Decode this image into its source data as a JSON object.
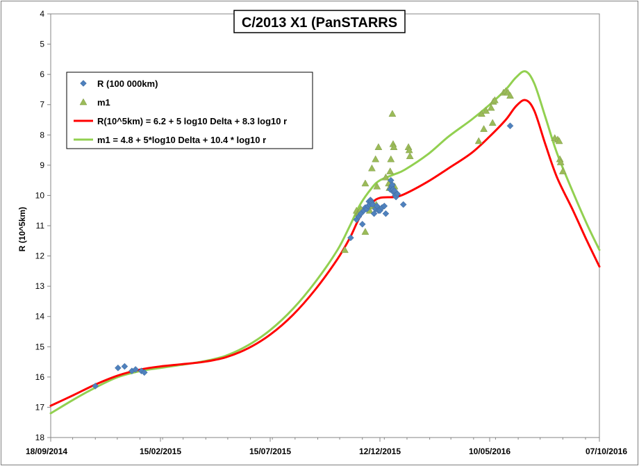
{
  "chart_data": {
    "type": "scatter",
    "title": "C/2013 X1 (PanSTARRS",
    "ylabel": "R (10^5km)",
    "xlabel": "",
    "ylim": [
      4,
      18
    ],
    "y_inverted": true,
    "y_ticks": [
      4,
      5,
      6,
      7,
      8,
      9,
      10,
      11,
      12,
      13,
      14,
      15,
      16,
      17,
      18
    ],
    "xlim": [
      "18/09/2014",
      "07/10/2016"
    ],
    "x_ticks": [
      "18/09/2014",
      "15/02/2015",
      "15/07/2015",
      "12/12/2015",
      "10/05/2016",
      "07/10/2016"
    ],
    "grid": false,
    "legend_position": "top-left",
    "series": [
      {
        "name": "R (100 000km)",
        "kind": "points",
        "marker": "diamond",
        "color": "#4f81bd",
        "points": [
          [
            "18/11/2014",
            16.3
          ],
          [
            "19/12/2014",
            15.7
          ],
          [
            "28/12/2014",
            15.65
          ],
          [
            "07/01/2015",
            15.8
          ],
          [
            "12/01/2015",
            15.75
          ],
          [
            "20/01/2015",
            15.8
          ],
          [
            "24/01/2015",
            15.85
          ],
          [
            "02/11/2015",
            11.4
          ],
          [
            "10/11/2015",
            10.8
          ],
          [
            "13/11/2015",
            10.7
          ],
          [
            "16/11/2015",
            10.6
          ],
          [
            "18/11/2015",
            10.95
          ],
          [
            "20/11/2015",
            10.5
          ],
          [
            "22/11/2015",
            10.4
          ],
          [
            "24/11/2015",
            10.45
          ],
          [
            "26/11/2015",
            10.35
          ],
          [
            "27/11/2015",
            10.2
          ],
          [
            "28/11/2015",
            10.3
          ],
          [
            "29/11/2015",
            10.15
          ],
          [
            "30/11/2015",
            10.2
          ],
          [
            "01/12/2015",
            10.25
          ],
          [
            "02/12/2015",
            10.3
          ],
          [
            "04/12/2015",
            10.6
          ],
          [
            "06/12/2015",
            10.45
          ],
          [
            "08/12/2015",
            10.35
          ],
          [
            "10/12/2015",
            10.5
          ],
          [
            "12/12/2015",
            10.5
          ],
          [
            "15/12/2015",
            10.4
          ],
          [
            "18/12/2015",
            10.35
          ],
          [
            "20/12/2015",
            10.6
          ],
          [
            "26/12/2015",
            9.8
          ],
          [
            "27/12/2015",
            9.5
          ],
          [
            "28/12/2015",
            9.7
          ],
          [
            "29/12/2015",
            9.65
          ],
          [
            "30/12/2015",
            9.8
          ],
          [
            "31/12/2015",
            9.9
          ],
          [
            "01/01/2016",
            9.85
          ],
          [
            "02/01/2016",
            10.0
          ],
          [
            "03/01/2016",
            10.05
          ],
          [
            "05/01/2016",
            9.95
          ],
          [
            "13/01/2016",
            10.3
          ],
          [
            "07/06/2016",
            7.7
          ]
        ]
      },
      {
        "name": "m1",
        "kind": "points",
        "marker": "triangle",
        "color": "#9bbb59",
        "points": [
          [
            "25/10/2015",
            11.8
          ],
          [
            "10/11/2015",
            10.5
          ],
          [
            "12/11/2015",
            10.6
          ],
          [
            "14/11/2015",
            10.55
          ],
          [
            "16/11/2015",
            10.45
          ],
          [
            "22/11/2015",
            11.2
          ],
          [
            "22/11/2015",
            9.6
          ],
          [
            "26/11/2015",
            10.4
          ],
          [
            "28/11/2015",
            10.5
          ],
          [
            "01/12/2015",
            9.1
          ],
          [
            "03/12/2015",
            10.35
          ],
          [
            "06/12/2015",
            8.8
          ],
          [
            "07/12/2015",
            10.3
          ],
          [
            "08/12/2015",
            9.7
          ],
          [
            "10/12/2015",
            8.4
          ],
          [
            "20/12/2015",
            9.4
          ],
          [
            "24/12/2015",
            9.6
          ],
          [
            "25/12/2015",
            9.75
          ],
          [
            "26/12/2015",
            9.2
          ],
          [
            "27/12/2015",
            8.8
          ],
          [
            "29/12/2015",
            7.3
          ],
          [
            "30/12/2015",
            8.3
          ],
          [
            "31/12/2015",
            8.4
          ],
          [
            "01/01/2016",
            9.7
          ],
          [
            "02/01/2016",
            9.85
          ],
          [
            "20/01/2016",
            8.4
          ],
          [
            "21/01/2016",
            8.5
          ],
          [
            "22/01/2016",
            8.7
          ],
          [
            "25/04/2016",
            8.2
          ],
          [
            "29/04/2016",
            7.3
          ],
          [
            "02/05/2016",
            7.8
          ],
          [
            "05/05/2016",
            7.2
          ],
          [
            "12/05/2016",
            7.1
          ],
          [
            "14/05/2016",
            7.6
          ],
          [
            "15/05/2016",
            6.9
          ],
          [
            "17/05/2016",
            6.85
          ],
          [
            "29/05/2016",
            6.6
          ],
          [
            "01/06/2016",
            6.55
          ],
          [
            "04/06/2016",
            6.6
          ],
          [
            "07/06/2016",
            6.7
          ],
          [
            "07/08/2016",
            8.1
          ],
          [
            "11/08/2016",
            8.15
          ],
          [
            "13/08/2016",
            8.2
          ],
          [
            "14/08/2016",
            8.8
          ],
          [
            "15/08/2016",
            8.9
          ],
          [
            "18/08/2016",
            9.2
          ]
        ]
      },
      {
        "name": "R(10^5km) = 6.2 + 5 log10 Delta + 8.3  log10 r",
        "kind": "line",
        "color": "#ff0000",
        "points": [
          [
            "18/09/2014",
            16.95
          ],
          [
            "19/10/2014",
            16.6
          ],
          [
            "18/11/2014",
            16.25
          ],
          [
            "19/12/2014",
            15.95
          ],
          [
            "19/01/2015",
            15.75
          ],
          [
            "15/02/2015",
            15.65
          ],
          [
            "15/03/2015",
            15.58
          ],
          [
            "15/04/2015",
            15.5
          ],
          [
            "15/05/2015",
            15.35
          ],
          [
            "15/06/2015",
            15.05
          ],
          [
            "15/07/2015",
            14.6
          ],
          [
            "15/08/2015",
            13.95
          ],
          [
            "15/09/2015",
            13.1
          ],
          [
            "15/10/2015",
            12.1
          ],
          [
            "01/11/2015",
            11.4
          ],
          [
            "15/11/2015",
            10.7
          ],
          [
            "01/12/2015",
            10.25
          ],
          [
            "12/12/2015",
            10.08
          ],
          [
            "01/01/2016",
            10.05
          ],
          [
            "15/01/2016",
            9.95
          ],
          [
            "15/02/2016",
            9.55
          ],
          [
            "15/03/2016",
            9.1
          ],
          [
            "15/04/2016",
            8.6
          ],
          [
            "10/05/2016",
            8.05
          ],
          [
            "01/06/2016",
            7.5
          ],
          [
            "15/06/2016",
            7.05
          ],
          [
            "28/06/2016",
            6.85
          ],
          [
            "10/07/2016",
            7.2
          ],
          [
            "25/07/2016",
            8.3
          ],
          [
            "10/08/2016",
            9.4
          ],
          [
            "01/09/2016",
            10.5
          ],
          [
            "20/09/2016",
            11.5
          ],
          [
            "07/10/2016",
            12.35
          ]
        ]
      },
      {
        "name": "m1 = 4.8 + 5*log10 Delta + 10.4 * log10 r",
        "kind": "line",
        "color": "#92d050",
        "points": [
          [
            "18/09/2014",
            17.2
          ],
          [
            "19/10/2014",
            16.75
          ],
          [
            "18/11/2014",
            16.35
          ],
          [
            "19/12/2014",
            16.0
          ],
          [
            "19/01/2015",
            15.8
          ],
          [
            "15/02/2015",
            15.7
          ],
          [
            "15/03/2015",
            15.6
          ],
          [
            "15/04/2015",
            15.48
          ],
          [
            "15/05/2015",
            15.3
          ],
          [
            "15/06/2015",
            14.95
          ],
          [
            "15/07/2015",
            14.45
          ],
          [
            "15/08/2015",
            13.75
          ],
          [
            "15/09/2015",
            12.85
          ],
          [
            "15/10/2015",
            11.8
          ],
          [
            "01/11/2015",
            11.0
          ],
          [
            "15/11/2015",
            10.3
          ],
          [
            "01/12/2015",
            9.75
          ],
          [
            "12/12/2015",
            9.5
          ],
          [
            "01/01/2016",
            9.3
          ],
          [
            "15/01/2016",
            9.15
          ],
          [
            "15/02/2016",
            8.65
          ],
          [
            "15/03/2016",
            8.05
          ],
          [
            "15/04/2016",
            7.5
          ],
          [
            "10/05/2016",
            7.0
          ],
          [
            "01/06/2016",
            6.5
          ],
          [
            "15/06/2016",
            6.1
          ],
          [
            "28/06/2016",
            5.9
          ],
          [
            "10/07/2016",
            6.3
          ],
          [
            "25/07/2016",
            7.4
          ],
          [
            "10/08/2016",
            8.6
          ],
          [
            "01/09/2016",
            9.9
          ],
          [
            "20/09/2016",
            10.95
          ],
          [
            "07/10/2016",
            11.8
          ]
        ]
      }
    ]
  }
}
